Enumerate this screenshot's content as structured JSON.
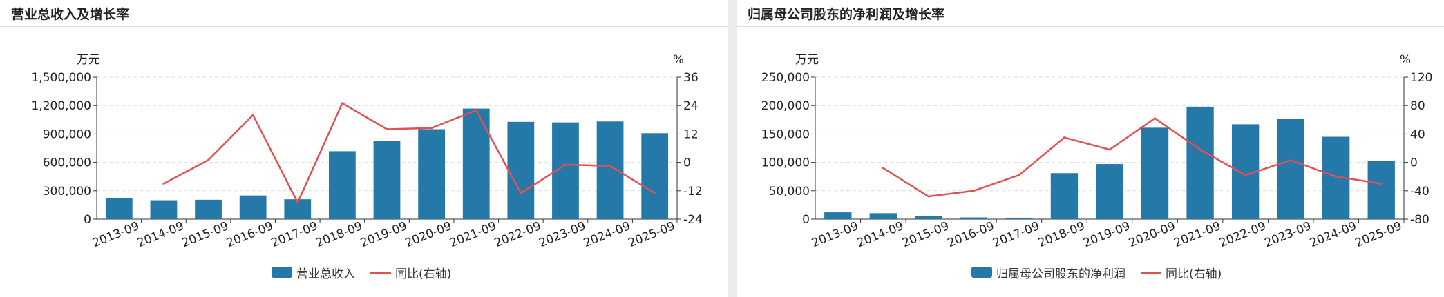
{
  "panels": [
    {
      "title": "营业总收入及增长率",
      "left_unit": "万元",
      "right_unit": "%",
      "legend": {
        "bar": "营业总收入",
        "line": "同比(右轴)"
      }
    },
    {
      "title": "归属母公司股东的净利润及增长率",
      "left_unit": "万元",
      "right_unit": "%",
      "legend": {
        "bar": "归属母公司股东的净利润",
        "line": "同比(右轴)"
      }
    }
  ],
  "colors": {
    "bar": "#2479a8",
    "line": "#e05252",
    "grid": "#d9dde2",
    "axis": "#333333"
  },
  "chart_data": [
    {
      "type": "bar",
      "title": "营业总收入及增长率",
      "categories": [
        "2013-09",
        "2014-09",
        "2015-09",
        "2016-09",
        "2017-09",
        "2018-09",
        "2019-09",
        "2020-09",
        "2021-09",
        "2022-09",
        "2023-09",
        "2024-09",
        "2025-09"
      ],
      "series": [
        {
          "name": "营业总收入",
          "type": "bar",
          "axis": "left",
          "values": [
            222000,
            200000,
            205000,
            250000,
            210000,
            718000,
            825000,
            950000,
            1168000,
            1028000,
            1022000,
            1032000,
            908000
          ]
        },
        {
          "name": "同比(右轴)",
          "type": "line",
          "axis": "right",
          "values": [
            null,
            -9,
            1,
            20,
            -17,
            25,
            14,
            14.5,
            22,
            -13,
            -1,
            -1.5,
            -13
          ]
        }
      ],
      "yleft": {
        "label": "万元",
        "ticks": [
          "0",
          "300,000",
          "600,000",
          "900,000",
          "1,200,000",
          "1,500,000"
        ],
        "range": [
          0,
          1500000
        ]
      },
      "yright": {
        "label": "%",
        "ticks": [
          "-24",
          "-12",
          "0",
          "12",
          "24",
          "36"
        ],
        "range": [
          -24,
          36
        ]
      },
      "grid": true,
      "legend": "bottom-center"
    },
    {
      "type": "bar",
      "title": "归属母公司股东的净利润及增长率",
      "categories": [
        "2013-09",
        "2014-09",
        "2015-09",
        "2016-09",
        "2017-09",
        "2018-09",
        "2019-09",
        "2020-09",
        "2021-09",
        "2022-09",
        "2023-09",
        "2024-09",
        "2025-09"
      ],
      "series": [
        {
          "name": "归属母公司股东的净利润",
          "type": "bar",
          "axis": "left",
          "values": [
            12000,
            10500,
            6000,
            3000,
            2500,
            81000,
            97000,
            161000,
            198000,
            167000,
            176000,
            145000,
            102000
          ]
        },
        {
          "name": "同比(右轴)",
          "type": "line",
          "axis": "right",
          "values": [
            null,
            -8,
            -48,
            -40,
            -18,
            35,
            18,
            62,
            18,
            -18,
            3,
            -20,
            -30
          ]
        }
      ],
      "yleft": {
        "label": "万元",
        "ticks": [
          "0",
          "50,000",
          "100,000",
          "150,000",
          "200,000",
          "250,000"
        ],
        "range": [
          0,
          250000
        ]
      },
      "yright": {
        "label": "%",
        "ticks": [
          "-80",
          "-40",
          "0",
          "40",
          "80",
          "120"
        ],
        "range": [
          -80,
          120
        ]
      },
      "grid": true,
      "legend": "bottom-center"
    }
  ]
}
